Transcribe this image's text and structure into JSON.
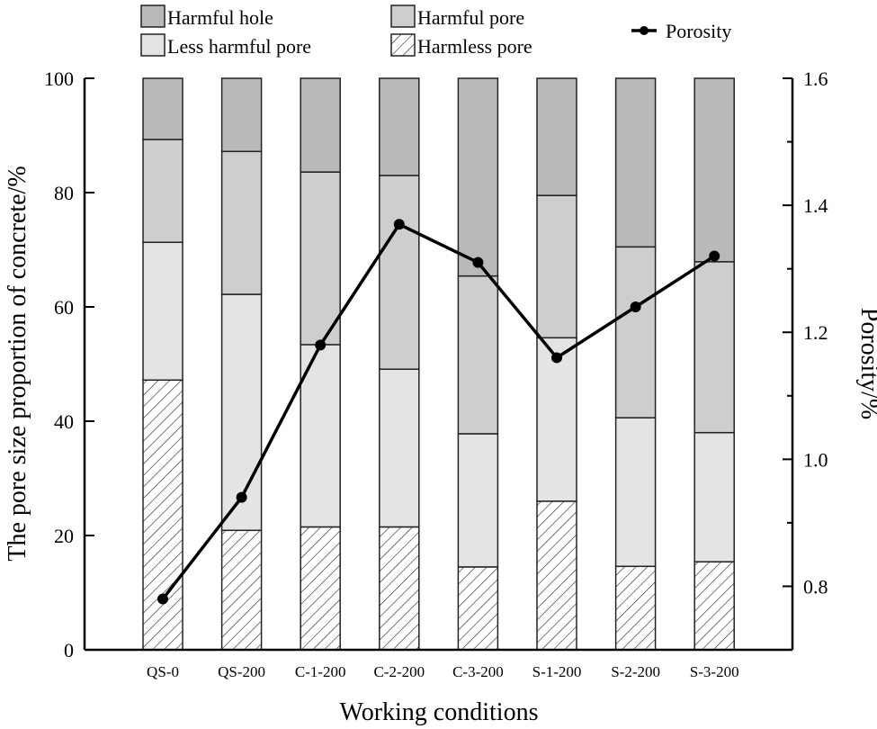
{
  "chart_data": {
    "type": "bar",
    "stacked": true,
    "secondary_type": "line",
    "title": "",
    "xlabel": "Working conditions",
    "ylabel": "The pore size proportion of concrete/%",
    "ylabel_right": "Porosity/%",
    "ylim": [
      0,
      100
    ],
    "ylim_right": [
      0.7,
      1.6
    ],
    "yticks": [
      "0",
      "20",
      "40",
      "60",
      "80",
      "100"
    ],
    "yticks_right": [
      "0.8",
      "1.0",
      "1.2",
      "1.4",
      "1.6"
    ],
    "grid": false,
    "legend_position": "top",
    "categories": [
      "QS-0",
      "QS-200",
      "C-1-200",
      "C-2-200",
      "C-3-200",
      "S-1-200",
      "S-2-200",
      "S-3-200"
    ],
    "series": [
      {
        "name": "Harmless pore",
        "values": [
          47.2,
          20.9,
          21.5,
          21.5,
          14.5,
          26.0,
          14.6,
          15.4
        ]
      },
      {
        "name": "Less harmful pore",
        "values": [
          24.1,
          41.3,
          31.9,
          27.6,
          23.3,
          28.6,
          26.0,
          22.6
        ]
      },
      {
        "name": "Harmful pore",
        "values": [
          18.0,
          25.0,
          30.2,
          33.9,
          27.6,
          24.9,
          29.9,
          29.9
        ]
      },
      {
        "name": "Harmful hole",
        "values": [
          10.7,
          12.8,
          16.4,
          17.0,
          34.6,
          20.5,
          29.5,
          32.1
        ]
      }
    ],
    "line_series": {
      "name": "Porosity",
      "axis": "right",
      "values": [
        0.78,
        0.94,
        1.18,
        1.37,
        1.31,
        1.16,
        1.24,
        1.32
      ]
    }
  },
  "legend": {
    "harmful_hole": "Harmful hole",
    "harmful_pore": "Harmful pore",
    "less_harmful_pore": "Less harmful pore",
    "harmless_pore": "Harmless pore",
    "porosity": "Porosity"
  },
  "colors": {
    "harmful_hole": "#b9b9b9",
    "harmful_pore": "#cecece",
    "less_harmful_pore": "#e4e4e4",
    "harmless_pore": "#ffffff",
    "line": "#000000"
  }
}
